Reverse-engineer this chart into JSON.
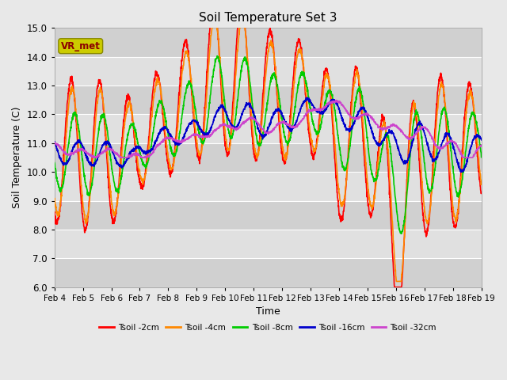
{
  "title": "Soil Temperature Set 3",
  "xlabel": "Time",
  "ylabel": "Soil Temperature (C)",
  "ylim": [
    6.0,
    15.0
  ],
  "yticks": [
    6.0,
    7.0,
    8.0,
    9.0,
    10.0,
    11.0,
    12.0,
    13.0,
    14.0,
    15.0
  ],
  "x_labels": [
    "Feb 4",
    "Feb 5",
    "Feb 6",
    "Feb 7",
    "Feb 8",
    "Feb 9",
    "Feb 10",
    "Feb 11",
    "Feb 12",
    "Feb 13",
    "Feb 14",
    "Feb 15",
    "Feb 16",
    "Feb 17",
    "Feb 18",
    "Feb 19"
  ],
  "series_colors": [
    "#ff0000",
    "#ff8800",
    "#00cc00",
    "#0000cc",
    "#cc44cc"
  ],
  "series_labels": [
    "Tsoil -2cm",
    "Tsoil -4cm",
    "Tsoil -8cm",
    "Tsoil -16cm",
    "Tsoil -32cm"
  ],
  "line_width": 1.2,
  "fig_bg": "#e8e8e8",
  "band_colors": [
    "#d0d0d0",
    "#e0e0e0"
  ],
  "legend_label": "VR_met",
  "legend_box_fc": "#cccc00",
  "legend_box_ec": "#888800",
  "legend_text_color": "#8b0000"
}
